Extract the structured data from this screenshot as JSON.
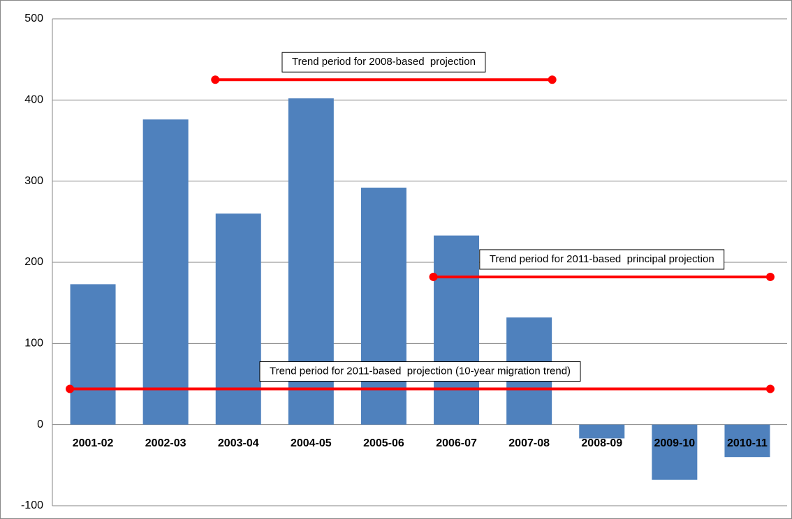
{
  "chart_data": {
    "type": "bar",
    "categories": [
      "2001-02",
      "2002-03",
      "2003-04",
      "2004-05",
      "2005-06",
      "2006-07",
      "2007-08",
      "2008-09",
      "2009-10",
      "2010-11"
    ],
    "values": [
      173,
      376,
      260,
      402,
      292,
      233,
      132,
      -17,
      -68,
      -40
    ],
    "color": "#4f81bd",
    "ylim": [
      -100,
      500
    ],
    "yticks": [
      -100,
      0,
      100,
      200,
      300,
      400,
      500
    ],
    "grid": true,
    "annotations": [
      {
        "text": "Trend period for 2008-based  projection",
        "start": "2003-04",
        "end": "2007-08",
        "y": 425,
        "color": "#ff0000"
      },
      {
        "text": "Trend period for 2011-based  principal projection",
        "start": "2006-07",
        "end": "2010-11",
        "y": 182,
        "color": "#ff0000"
      },
      {
        "text": "Trend period for 2011-based  projection (10-year migration trend)",
        "start": "2001-02",
        "end": "2010-11",
        "y": 44,
        "color": "#ff0000"
      }
    ]
  }
}
